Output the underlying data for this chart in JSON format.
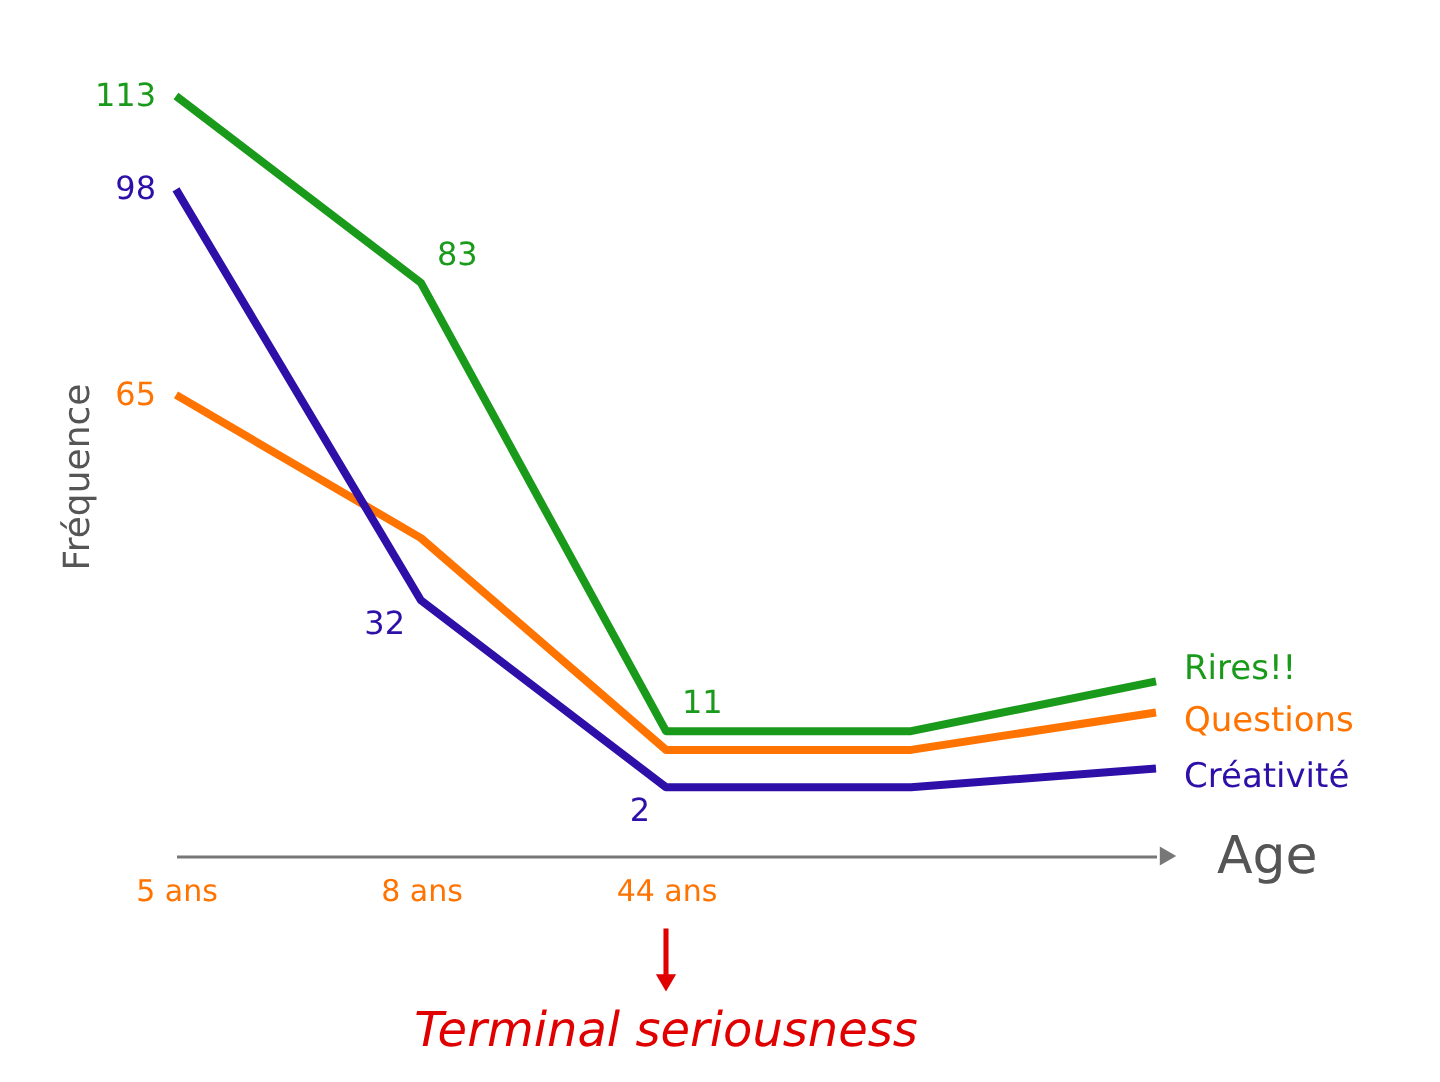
{
  "chart_data": {
    "type": "line",
    "xlabel": "Age",
    "ylabel": "Fréquence",
    "categories": [
      "5 ans",
      "8 ans",
      "44 ans",
      null,
      null
    ],
    "series": [
      {
        "name": "Rires!!",
        "color": "#1a9a1a",
        "values": [
          113,
          83,
          11,
          11,
          19
        ],
        "value_labels": [
          "113",
          "83",
          "11",
          null,
          null
        ]
      },
      {
        "name": "Questions",
        "color": "#ff7300",
        "values": [
          65,
          42,
          8,
          8,
          14
        ],
        "value_labels": [
          "65",
          null,
          null,
          null,
          null
        ]
      },
      {
        "name": "Créativité",
        "color": "#2e0fa8",
        "values": [
          98,
          32,
          2,
          2,
          5
        ],
        "value_labels": [
          "98",
          "32",
          "2",
          null,
          null
        ]
      }
    ],
    "annotations": [
      "Terminal seriousness"
    ],
    "legend": false,
    "grid": false,
    "line_style": "solid"
  }
}
